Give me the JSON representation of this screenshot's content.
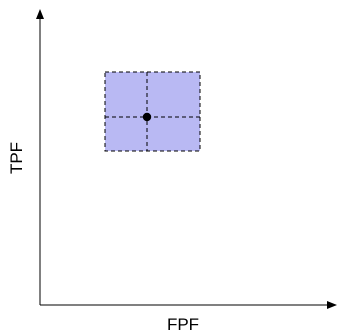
{
  "diagram": {
    "x_axis_label": "FPF",
    "y_axis_label": "TPF",
    "colors": {
      "axis": "#000000",
      "region_fill": "#b9b9f3",
      "region_border": "#000000",
      "point": "#000000"
    }
  }
}
